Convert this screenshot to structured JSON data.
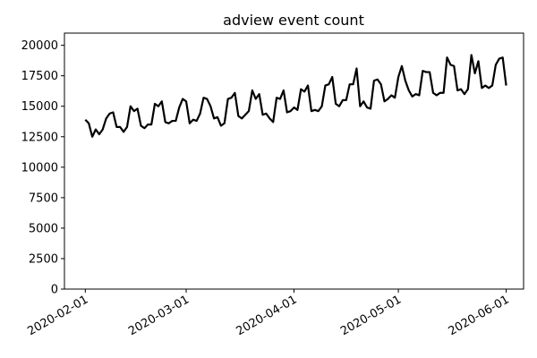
{
  "chart_data": {
    "type": "line",
    "title": "adview event count",
    "xlabel": "",
    "ylabel": "",
    "x_start": "2020-02-01",
    "x_end": "2020-06-01",
    "xlim": [
      "2020-01-26",
      "2020-06-06"
    ],
    "ylim": [
      0,
      21000
    ],
    "x_ticks": [
      {
        "date": "2020-02-01",
        "label": "2020-02-01"
      },
      {
        "date": "2020-03-01",
        "label": "2020-03-01"
      },
      {
        "date": "2020-04-01",
        "label": "2020-04-01"
      },
      {
        "date": "2020-05-01",
        "label": "2020-05-01"
      },
      {
        "date": "2020-06-01",
        "label": "2020-06-01"
      }
    ],
    "y_ticks": [
      0,
      2500,
      5000,
      7500,
      10000,
      12500,
      15000,
      17500,
      20000
    ],
    "grid": false,
    "series": [
      {
        "name": "",
        "color": "#000000",
        "values": [
          13900,
          13600,
          12500,
          13100,
          12700,
          13100,
          14000,
          14400,
          14500,
          13300,
          13300,
          12900,
          13300,
          15000,
          14600,
          14800,
          13400,
          13200,
          13500,
          13500,
          15200,
          15000,
          15400,
          13700,
          13600,
          13800,
          13800,
          14900,
          15600,
          15400,
          13600,
          13900,
          13800,
          14400,
          15700,
          15600,
          15000,
          14000,
          14100,
          13400,
          13600,
          15600,
          15700,
          16100,
          14200,
          14000,
          14300,
          14600,
          16300,
          15600,
          16000,
          14300,
          14400,
          14000,
          13700,
          15700,
          15600,
          16300,
          14500,
          14600,
          14900,
          14700,
          16400,
          16200,
          16700,
          14600,
          14700,
          14600,
          15000,
          16700,
          16800,
          17400,
          15200,
          15000,
          15500,
          15500,
          16800,
          16800,
          18100,
          15000,
          15400,
          14900,
          14800,
          17100,
          17200,
          16800,
          15400,
          15600,
          15900,
          15700,
          17400,
          18300,
          17100,
          16300,
          15800,
          16000,
          15900,
          17900,
          17800,
          17800,
          16100,
          15900,
          16100,
          16100,
          19000,
          18400,
          18300,
          16300,
          16400,
          16000,
          16400,
          19200,
          17700,
          18700,
          16500,
          16700,
          16500,
          16700,
          18400,
          18900,
          19000,
          16700
        ]
      }
    ]
  }
}
